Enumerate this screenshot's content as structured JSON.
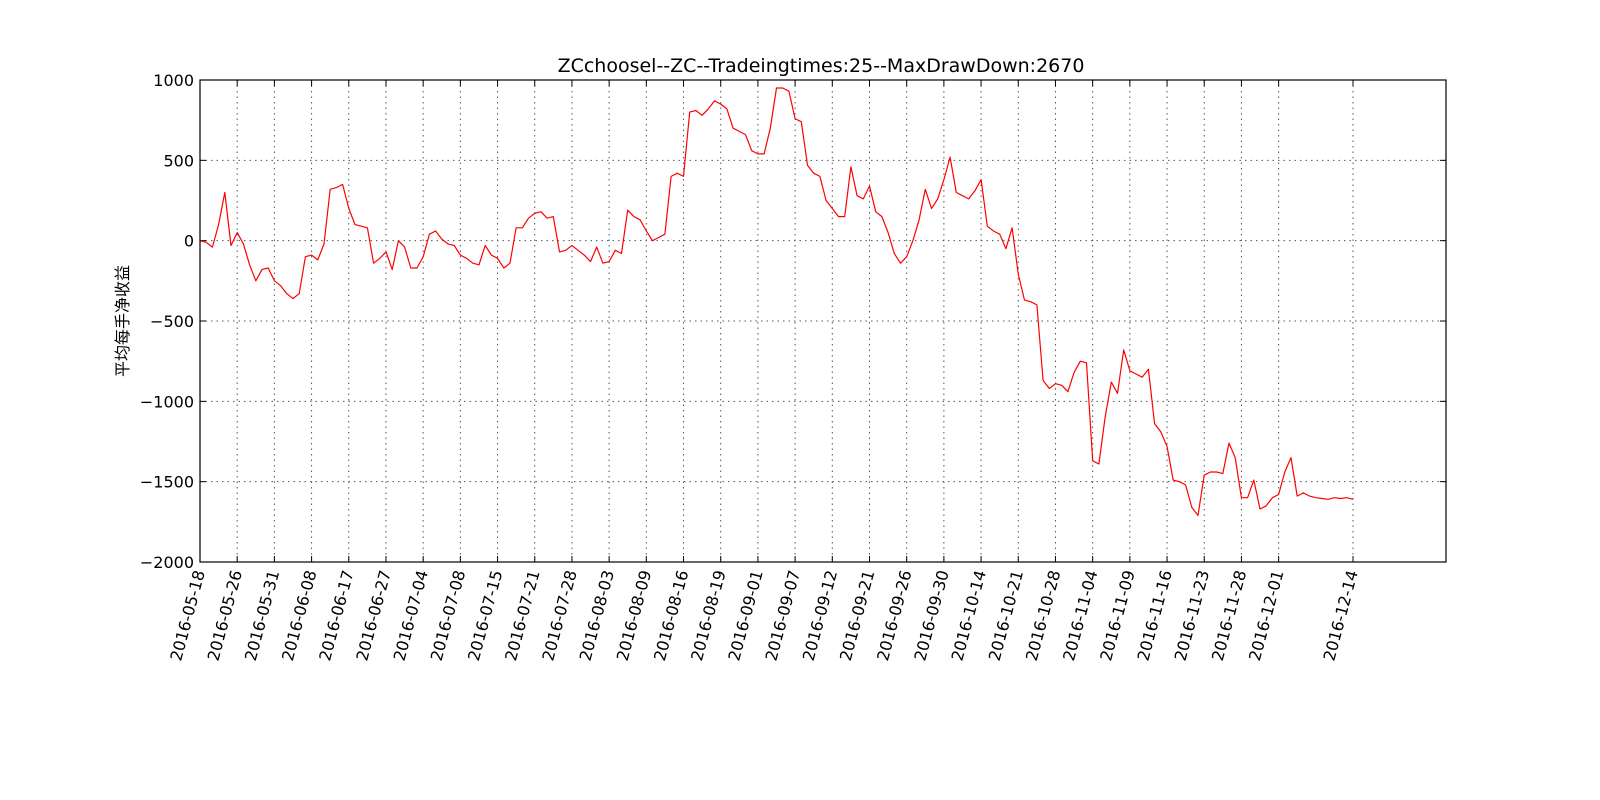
{
  "chart_data": {
    "type": "line",
    "title": "ZCchoosel--ZC--Tradeingtimes:25--MaxDrawDown:2670",
    "xlabel": "",
    "ylabel": "平均每手净收益",
    "ylim": [
      -2000,
      1000
    ],
    "yticks": [
      1000,
      500,
      0,
      -500,
      -1000,
      -1500,
      -2000
    ],
    "ytick_labels": [
      "1000",
      "500",
      "0",
      "−500",
      "−1000",
      "−1500",
      "−2000"
    ],
    "xticks": [
      {
        "label": "2016-05-18",
        "index": 0
      },
      {
        "label": "2016-05-26",
        "index": 6
      },
      {
        "label": "2016-05-31",
        "index": 12
      },
      {
        "label": "2016-06-08",
        "index": 18
      },
      {
        "label": "2016-06-17",
        "index": 24
      },
      {
        "label": "2016-06-27",
        "index": 30
      },
      {
        "label": "2016-07-04",
        "index": 36
      },
      {
        "label": "2016-07-08",
        "index": 42
      },
      {
        "label": "2016-07-15",
        "index": 48
      },
      {
        "label": "2016-07-21",
        "index": 54
      },
      {
        "label": "2016-07-28",
        "index": 60
      },
      {
        "label": "2016-08-03",
        "index": 66
      },
      {
        "label": "2016-08-09",
        "index": 72
      },
      {
        "label": "2016-08-16",
        "index": 78
      },
      {
        "label": "2016-08-19",
        "index": 84
      },
      {
        "label": "2016-09-01",
        "index": 90
      },
      {
        "label": "2016-09-07",
        "index": 96
      },
      {
        "label": "2016-09-12",
        "index": 102
      },
      {
        "label": "2016-09-21",
        "index": 108
      },
      {
        "label": "2016-09-26",
        "index": 114
      },
      {
        "label": "2016-09-30",
        "index": 120
      },
      {
        "label": "2016-10-14",
        "index": 126
      },
      {
        "label": "2016-10-21",
        "index": 132
      },
      {
        "label": "2016-10-28",
        "index": 138
      },
      {
        "label": "2016-11-04",
        "index": 144
      },
      {
        "label": "2016-11-09",
        "index": 150
      },
      {
        "label": "2016-11-16",
        "index": 156
      },
      {
        "label": "2016-11-23",
        "index": 162
      },
      {
        "label": "2016-11-28",
        "index": 168
      },
      {
        "label": "2016-12-01",
        "index": 174
      },
      {
        "label": "2016-12-14",
        "index": 186
      }
    ],
    "xlim": [
      0,
      201
    ],
    "grid": true,
    "legend": "none",
    "series": [
      {
        "color": "#ff0000",
        "values": [
          0,
          -10,
          -40,
          100,
          300,
          -30,
          50,
          -20,
          -150,
          -250,
          -180,
          -170,
          -250,
          -280,
          -330,
          -360,
          -330,
          -100,
          -90,
          -120,
          -20,
          320,
          330,
          350,
          200,
          100,
          90,
          80,
          -140,
          -110,
          -70,
          -180,
          0,
          -40,
          -170,
          -170,
          -100,
          40,
          60,
          10,
          -20,
          -30,
          -90,
          -110,
          -140,
          -150,
          -30,
          -90,
          -110,
          -170,
          -140,
          80,
          80,
          140,
          170,
          180,
          140,
          150,
          -70,
          -60,
          -30,
          -60,
          -90,
          -130,
          -40,
          -140,
          -130,
          -60,
          -80,
          190,
          150,
          130,
          60,
          0,
          20,
          40,
          400,
          420,
          400,
          800,
          810,
          780,
          820,
          870,
          850,
          820,
          700,
          680,
          660,
          560,
          540,
          540,
          700,
          950,
          950,
          930,
          760,
          740,
          470,
          420,
          400,
          250,
          200,
          150,
          150,
          460,
          280,
          260,
          340,
          180,
          150,
          50,
          -80,
          -140,
          -100,
          0,
          130,
          320,
          200,
          260,
          380,
          520,
          300,
          280,
          260,
          310,
          380,
          90,
          60,
          40,
          -50,
          80,
          -210,
          -370,
          -380,
          -400,
          -870,
          -920,
          -890,
          -900,
          -940,
          -820,
          -750,
          -760,
          -1370,
          -1390,
          -1100,
          -880,
          -950,
          -680,
          -810,
          -830,
          -850,
          -800,
          -1140,
          -1190,
          -1280,
          -1490,
          -1500,
          -1520,
          -1660,
          -1710,
          -1460,
          -1440,
          -1440,
          -1450,
          -1260,
          -1350,
          -1600,
          -1600,
          -1490,
          -1670,
          -1650,
          -1600,
          -1580,
          -1440,
          -1350,
          -1590,
          -1570,
          -1590,
          -1600,
          -1605,
          -1610,
          -1600,
          -1605,
          -1600,
          -1610
        ]
      }
    ]
  }
}
